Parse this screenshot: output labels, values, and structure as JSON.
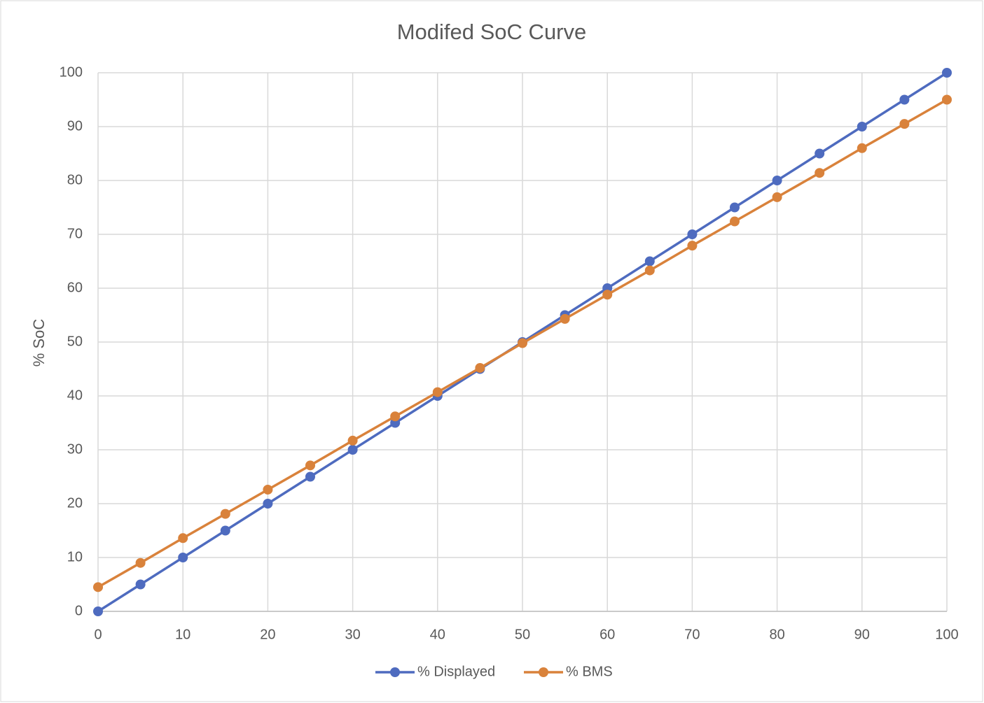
{
  "chart_data": {
    "type": "line",
    "title": "Modifed SoC Curve",
    "y_label": "% SoC",
    "x": [
      0,
      5,
      10,
      15,
      20,
      25,
      30,
      35,
      40,
      45,
      50,
      55,
      60,
      65,
      70,
      75,
      80,
      85,
      90,
      95,
      100
    ],
    "series": [
      {
        "name": "% Displayed",
        "color": "#4e6bbf",
        "values": [
          0,
          5,
          10,
          15,
          20,
          25,
          30,
          35,
          40,
          45,
          50,
          55,
          60,
          65,
          70,
          75,
          80,
          85,
          90,
          95,
          100
        ]
      },
      {
        "name": "% BMS",
        "color": "#d9823b",
        "values": [
          4.5,
          9.0,
          13.6,
          18.1,
          22.6,
          27.1,
          31.7,
          36.2,
          40.7,
          45.2,
          49.8,
          54.3,
          58.8,
          63.3,
          67.9,
          72.4,
          76.9,
          81.4,
          86.0,
          90.5,
          95.0
        ]
      }
    ],
    "xlim": [
      0,
      100
    ],
    "xticks": [
      0,
      10,
      20,
      30,
      40,
      50,
      60,
      70,
      80,
      90,
      100
    ],
    "ylim": [
      0,
      100
    ],
    "yticks": [
      0,
      10,
      20,
      30,
      40,
      50,
      60,
      70,
      80,
      90,
      100
    ],
    "grid": true,
    "legend": "bottom"
  }
}
